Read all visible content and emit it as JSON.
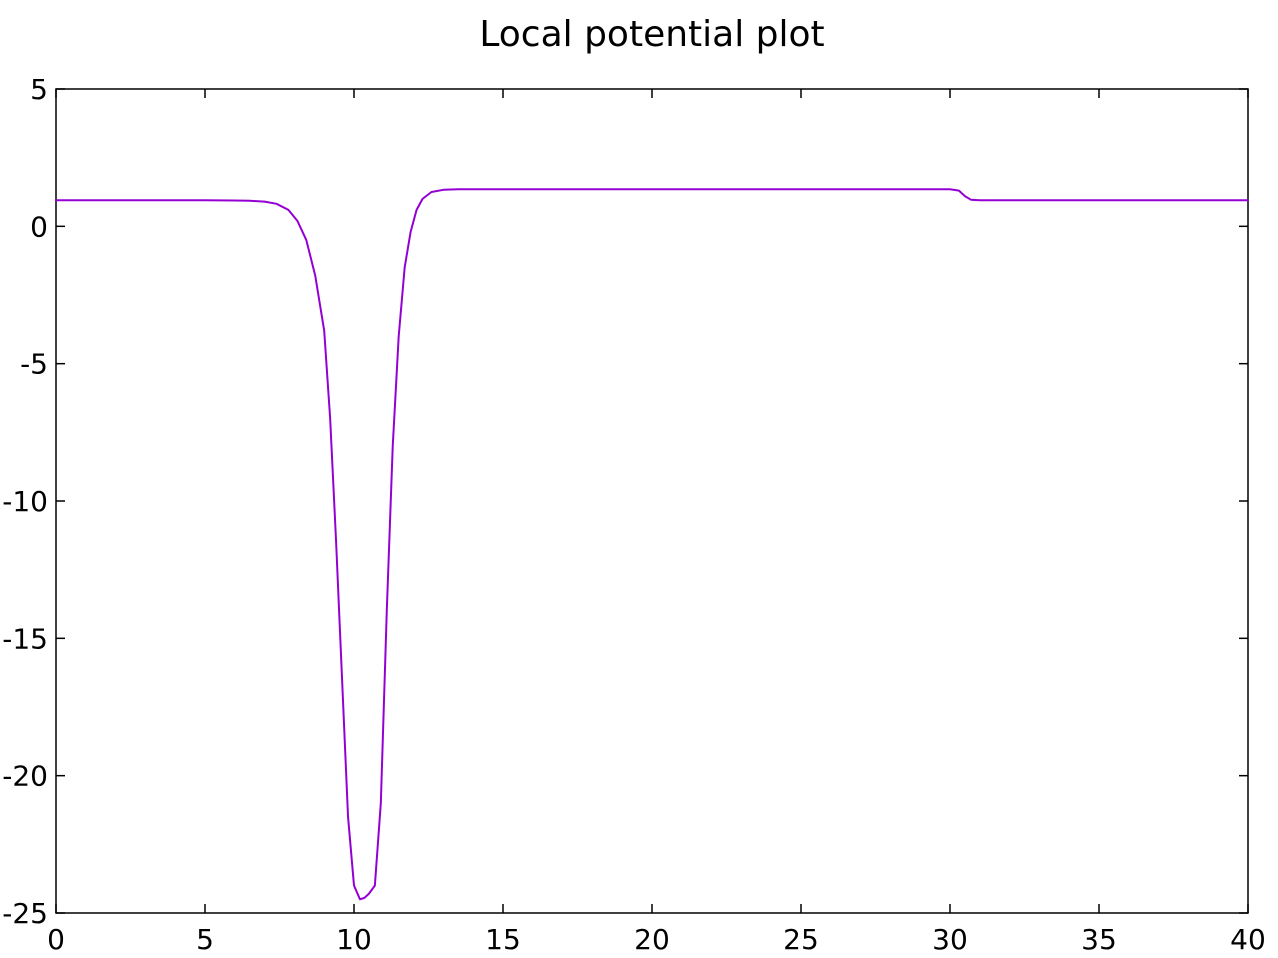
{
  "chart_data": {
    "type": "line",
    "title": "Local potential plot",
    "xlabel": "",
    "ylabel": "",
    "xlim": [
      0,
      40
    ],
    "ylim": [
      -25,
      5
    ],
    "x_ticks": [
      0,
      5,
      10,
      15,
      20,
      25,
      30,
      35,
      40
    ],
    "y_ticks": [
      5,
      0,
      -5,
      -10,
      -15,
      -20,
      -25
    ],
    "x_tick_labels": [
      "0",
      "5",
      "10",
      "15",
      "20",
      "25",
      "30",
      "35",
      "40"
    ],
    "y_tick_labels": [
      "5",
      "0",
      "-5",
      "-10",
      "-15",
      "-20",
      "-25"
    ],
    "grid": false,
    "legend": "none",
    "series": [
      {
        "color": "#9400d3",
        "x": [
          0,
          2,
          4,
          5,
          6,
          6.5,
          7,
          7.4,
          7.8,
          8.1,
          8.4,
          8.7,
          9.0,
          9.2,
          9.4,
          9.6,
          9.8,
          10.0,
          10.2,
          10.35,
          10.5,
          10.7,
          10.9,
          11.1,
          11.3,
          11.5,
          11.7,
          11.9,
          12.1,
          12.3,
          12.6,
          13.0,
          13.5,
          14.0,
          15,
          20,
          25,
          30,
          30.3,
          30.5,
          30.7,
          31,
          35,
          40
        ],
        "y": [
          0.95,
          0.95,
          0.95,
          0.95,
          0.94,
          0.93,
          0.9,
          0.82,
          0.6,
          0.2,
          -0.5,
          -1.8,
          -3.8,
          -7.0,
          -11.5,
          -16.5,
          -21.5,
          -24.0,
          -24.5,
          -24.45,
          -24.3,
          -24.0,
          -21.0,
          -14.0,
          -8.0,
          -4.0,
          -1.5,
          -0.2,
          0.6,
          1.0,
          1.25,
          1.33,
          1.35,
          1.35,
          1.35,
          1.35,
          1.35,
          1.35,
          1.3,
          1.1,
          0.97,
          0.95,
          0.95,
          0.95
        ]
      }
    ]
  }
}
